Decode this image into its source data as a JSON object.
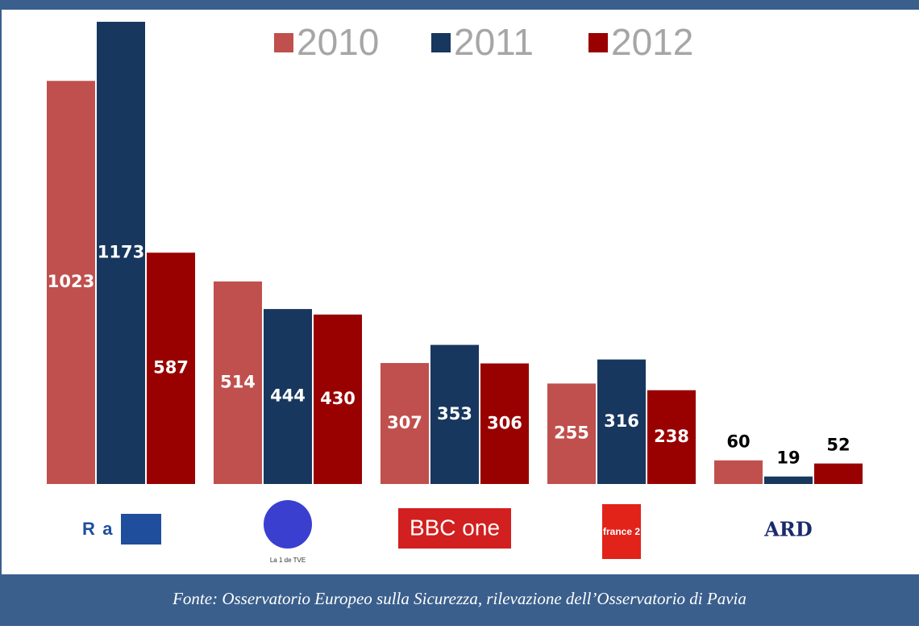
{
  "chart_data": {
    "type": "bar",
    "categories": [
      "Rai 1",
      "La 1 de TVE",
      "BBC one",
      "france 2",
      "ARD"
    ],
    "series": [
      {
        "name": "2010",
        "color": "#c0504d",
        "values": [
          1023,
          514,
          307,
          255,
          60
        ]
      },
      {
        "name": "2011",
        "color": "#17375e",
        "values": [
          1173,
          444,
          353,
          316,
          19
        ]
      },
      {
        "name": "2012",
        "color": "#990000",
        "values": [
          587,
          430,
          306,
          238,
          52
        ]
      }
    ]
  },
  "footer": {
    "source": "Fonte: Osservatorio Europeo sulla Sicurezza, rilevazione dell’Osservatorio di Pavia"
  }
}
